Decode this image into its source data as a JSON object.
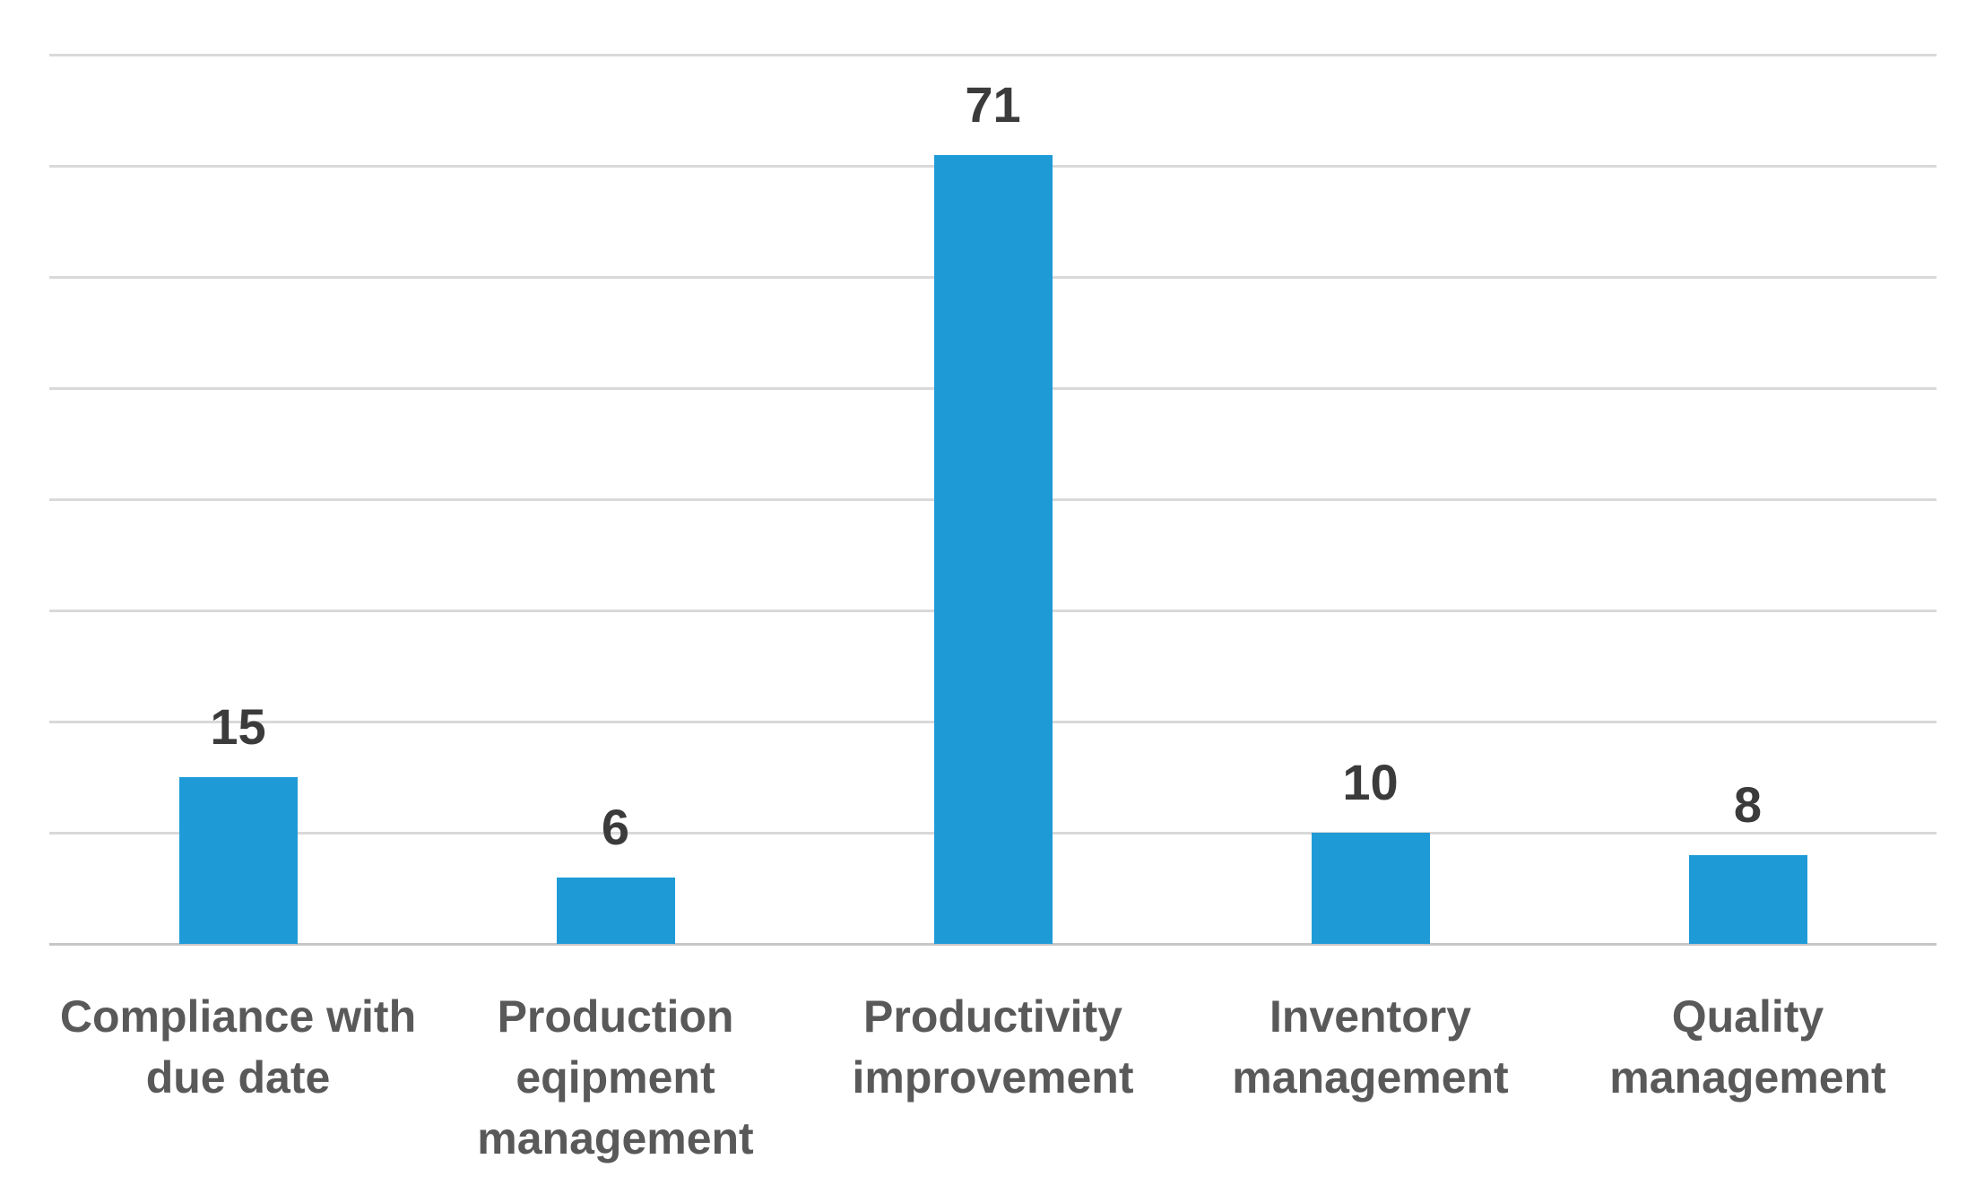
{
  "chart_data": {
    "type": "bar",
    "title": "",
    "xlabel": "",
    "ylabel": "",
    "categories": [
      "Compliance with due date",
      "Production eqipment management",
      "Productivity improvement",
      "Inventory management",
      "Quality management"
    ],
    "values": [
      15,
      6,
      71,
      10,
      8
    ],
    "data_labels": [
      "15",
      "6",
      "71",
      "10",
      "8"
    ],
    "ylim": [
      0,
      80
    ],
    "gridline_step": 10,
    "grid": "horizontal",
    "y_tick_labels_visible": false,
    "legend": "none",
    "colors": {
      "bar": "#1e9bd7",
      "gridline": "#d9d9d9",
      "axis_line": "#c6c6c6",
      "data_label": "#3b3b3b",
      "category_label": "#595959",
      "background": "#ffffff"
    }
  }
}
